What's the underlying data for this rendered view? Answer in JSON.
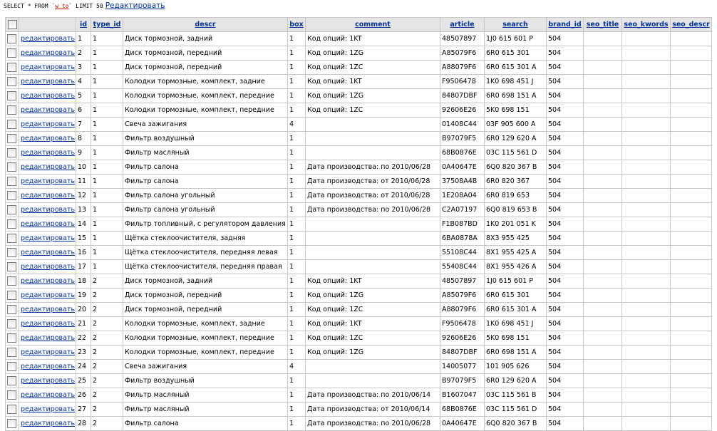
{
  "query": {
    "prefix": "SELECT * FROM `",
    "table": "w_to",
    "suffix": "` LIMIT 50",
    "edit_link": "Редактировать"
  },
  "table": {
    "headers": [
      "id",
      "type_id",
      "descr",
      "box",
      "comment",
      "article",
      "search",
      "brand_id",
      "seo_title",
      "seo_kwords",
      "seo_descr"
    ],
    "rows": [
      {
        "edit": "редактировать",
        "id": 1,
        "type_id": 1,
        "descr": "Диск тормозной, задний",
        "box": 1,
        "comment": "Код опций: 1KT",
        "article": "48507897",
        "search": "1J0 615 601 P",
        "brand_id": 504
      },
      {
        "edit": "редактировать",
        "id": 2,
        "type_id": 1,
        "descr": "Диск тормозной, передний",
        "box": 1,
        "comment": "Код опций: 1ZG",
        "article": "A85079F6",
        "search": "6R0 615 301",
        "brand_id": 504
      },
      {
        "edit": "редактировать",
        "id": 3,
        "type_id": 1,
        "descr": "Диск тормозной, передний",
        "box": 1,
        "comment": "Код опций: 1ZC",
        "article": "A88079F6",
        "search": "6R0 615 301 A",
        "brand_id": 504
      },
      {
        "edit": "редактировать",
        "id": 4,
        "type_id": 1,
        "descr": "Колодки тормозные, комплект, задние",
        "box": 1,
        "comment": "Код опций: 1KT",
        "article": "F9506478",
        "search": "1K0 698 451 J",
        "brand_id": 504
      },
      {
        "edit": "редактировать",
        "id": 5,
        "type_id": 1,
        "descr": "Колодки тормозные, комплект, передние",
        "box": 1,
        "comment": "Код опций: 1ZG",
        "article": "84807DBF",
        "search": "6R0 698 151 A",
        "brand_id": 504
      },
      {
        "edit": "редактировать",
        "id": 6,
        "type_id": 1,
        "descr": "Колодки тормозные, комплект, передние",
        "box": 1,
        "comment": "Код опций: 1ZC",
        "article": "92606E26",
        "search": "5K0 698 151",
        "brand_id": 504
      },
      {
        "edit": "редактировать",
        "id": 7,
        "type_id": 1,
        "descr": "Свеча зажигания",
        "box": 4,
        "article": "01408C44",
        "search": "03F 905 600 A",
        "brand_id": 504
      },
      {
        "edit": "редактировать",
        "id": 8,
        "type_id": 1,
        "descr": "Фильтр воздушный",
        "box": 1,
        "article": "B97079F5",
        "search": "6R0 129 620 A",
        "brand_id": 504
      },
      {
        "edit": "редактировать",
        "id": 9,
        "type_id": 1,
        "descr": "Фильтр масляный",
        "box": 1,
        "article": "68B0876E",
        "search": "03C 115 561 D",
        "brand_id": 504
      },
      {
        "edit": "редактировать",
        "id": 10,
        "type_id": 1,
        "descr": "Фильтр салона",
        "box": 1,
        "comment": "Дата производства: по 2010/06/28",
        "article": "0A40647E",
        "search": "6Q0 820 367 B",
        "brand_id": 504
      },
      {
        "edit": "редактировать",
        "id": 11,
        "type_id": 1,
        "descr": "Фильтр салона",
        "box": 1,
        "comment": "Дата производства: от 2010/06/28",
        "article": "37508A4B",
        "search": "6R0 820 367",
        "brand_id": 504
      },
      {
        "edit": "редактировать",
        "id": 12,
        "type_id": 1,
        "descr": "Фильтр салона угольный",
        "box": 1,
        "comment": "Дата производства: от 2010/06/28",
        "article": "1E208A04",
        "search": "6R0 819 653",
        "brand_id": 504
      },
      {
        "edit": "редактировать",
        "id": 13,
        "type_id": 1,
        "descr": "Фильтр салона угольный",
        "box": 1,
        "comment": "Дата производства: по 2010/06/28",
        "article": "C2A07197",
        "search": "6Q0 819 653 B",
        "brand_id": 504
      },
      {
        "edit": "редактировать",
        "id": 14,
        "type_id": 1,
        "descr": "Фильтр топливный, с регулятором давления",
        "box": 1,
        "article": "F1B087BD",
        "search": "1K0 201 051 K",
        "brand_id": 504
      },
      {
        "edit": "редактировать",
        "id": 15,
        "type_id": 1,
        "descr": "Щётка стеклоочистителя, задняя",
        "box": 1,
        "article": "6BA0878A",
        "search": "8X3 955 425",
        "brand_id": 504
      },
      {
        "edit": "редактировать",
        "id": 16,
        "type_id": 1,
        "descr": "Щётка стеклоочистителя, передняя левая",
        "box": 1,
        "article": "55108C44",
        "search": "8X1 955 425 A",
        "brand_id": 504
      },
      {
        "edit": "редактировать",
        "id": 17,
        "type_id": 1,
        "descr": "Щётка стеклоочистителя, передняя правая",
        "box": 1,
        "article": "55408C44",
        "search": "8X1 955 426 A",
        "brand_id": 504
      },
      {
        "edit": "редактировать",
        "id": 18,
        "type_id": 2,
        "descr": "Диск тормозной, задний",
        "box": 1,
        "comment": "Код опций: 1KT",
        "article": "48507897",
        "search": "1J0 615 601 P",
        "brand_id": 504
      },
      {
        "edit": "редактировать",
        "id": 19,
        "type_id": 2,
        "descr": "Диск тормозной, передний",
        "box": 1,
        "comment": "Код опций: 1ZG",
        "article": "A85079F6",
        "search": "6R0 615 301",
        "brand_id": 504
      },
      {
        "edit": "редактировать",
        "id": 20,
        "type_id": 2,
        "descr": "Диск тормозной, передний",
        "box": 1,
        "comment": "Код опций: 1ZC",
        "article": "A88079F6",
        "search": "6R0 615 301 A",
        "brand_id": 504
      },
      {
        "edit": "редактировать",
        "id": 21,
        "type_id": 2,
        "descr": "Колодки тормозные, комплект, задние",
        "box": 1,
        "comment": "Код опций: 1KT",
        "article": "F9506478",
        "search": "1K0 698 451 J",
        "brand_id": 504
      },
      {
        "edit": "редактировать",
        "id": 22,
        "type_id": 2,
        "descr": "Колодки тормозные, комплект, передние",
        "box": 1,
        "comment": "Код опций: 1ZC",
        "article": "92606E26",
        "search": "5K0 698 151",
        "brand_id": 504
      },
      {
        "edit": "редактировать",
        "id": 23,
        "type_id": 2,
        "descr": "Колодки тормозные, комплект, передние",
        "box": 1,
        "comment": "Код опций: 1ZG",
        "article": "84807DBF",
        "search": "6R0 698 151 A",
        "brand_id": 504
      },
      {
        "edit": "редактировать",
        "id": 24,
        "type_id": 2,
        "descr": "Свеча зажигания",
        "box": 4,
        "article": "14005077",
        "search": "101 905 626",
        "brand_id": 504
      },
      {
        "edit": "редактировать",
        "id": 25,
        "type_id": 2,
        "descr": "Фильтр воздушный",
        "box": 1,
        "article": "B97079F5",
        "search": "6R0 129 620 A",
        "brand_id": 504
      },
      {
        "edit": "редактировать",
        "id": 26,
        "type_id": 2,
        "descr": "Фильтр масляный",
        "box": 1,
        "comment": "Дата производства: по 2010/06/14",
        "article": "B1607047",
        "search": "03C 115 561 B",
        "brand_id": 504
      },
      {
        "edit": "редактировать",
        "id": 27,
        "type_id": 2,
        "descr": "Фильтр масляный",
        "box": 1,
        "comment": "Дата производства: от 2010/06/14",
        "article": "68B0876E",
        "search": "03C 115 561 D",
        "brand_id": 504
      },
      {
        "edit": "редактировать",
        "id": 28,
        "type_id": 2,
        "descr": "Фильтр салона",
        "box": 1,
        "comment": "Дата производства: по 2010/06/28",
        "article": "0A40647E",
        "search": "6Q0 820 367 B",
        "brand_id": 504
      }
    ]
  }
}
